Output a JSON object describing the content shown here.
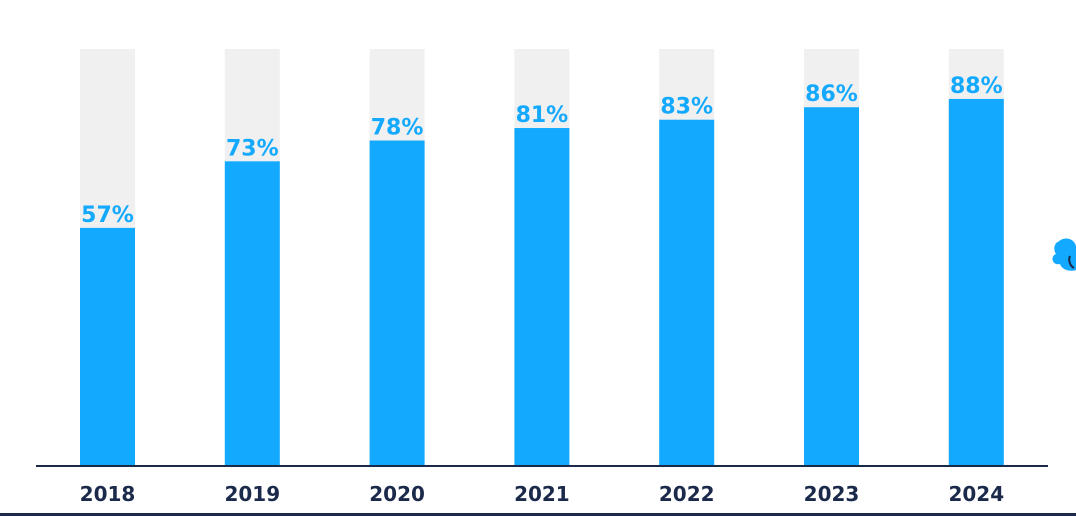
{
  "chart_data": {
    "type": "bar",
    "categories": [
      "2018",
      "2019",
      "2020",
      "2021",
      "2022",
      "2023",
      "2024"
    ],
    "values": [
      57,
      73,
      78,
      81,
      83,
      86,
      88
    ],
    "value_labels": [
      "57%",
      "73%",
      "78%",
      "81%",
      "83%",
      "86%",
      "88%"
    ],
    "unit": "%",
    "ylim": [
      0,
      100
    ],
    "background_track": true,
    "grid": false,
    "legend": "none",
    "colors": {
      "bar": "#12a9ff",
      "track": "#f0f0f0",
      "value_label": "#12a9ff",
      "axis": "#1b2a4a",
      "category_label": "#1b2a4a"
    }
  },
  "decor": {
    "edge_icon": "cloud-icon",
    "edge_icon_color": "#12a9ff"
  }
}
